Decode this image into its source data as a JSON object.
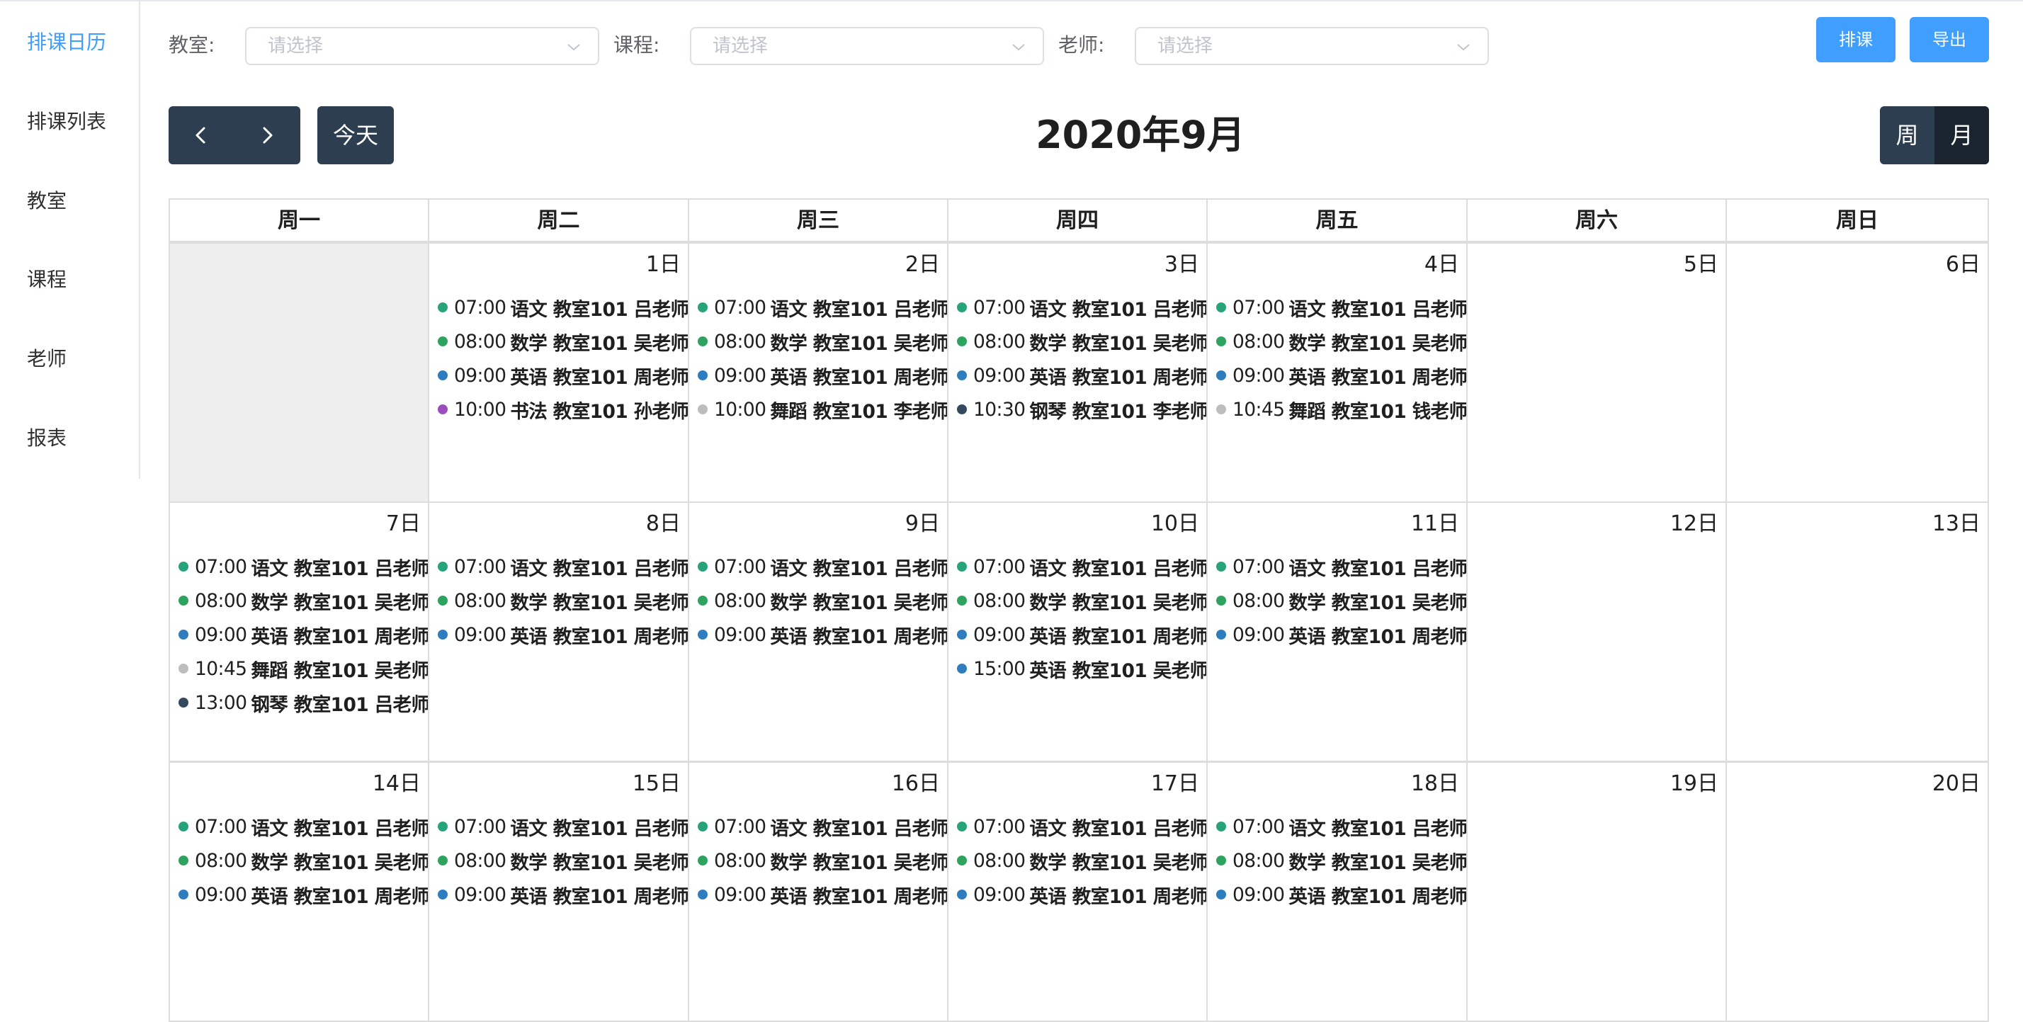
{
  "sidebar": {
    "items": [
      {
        "label": "排课日历",
        "active": true
      },
      {
        "label": "排课列表",
        "active": false
      },
      {
        "label": "教室",
        "active": false
      },
      {
        "label": "课程",
        "active": false
      },
      {
        "label": "老师",
        "active": false
      },
      {
        "label": "报表",
        "active": false
      }
    ]
  },
  "filters": {
    "classroom": {
      "label": "教室:",
      "placeholder": "请选择"
    },
    "course": {
      "label": "课程:",
      "placeholder": "请选择"
    },
    "teacher": {
      "label": "老师:",
      "placeholder": "请选择"
    }
  },
  "actions": {
    "schedule_label": "排课",
    "export_label": "导出"
  },
  "toolbar": {
    "today_label": "今天",
    "title": "2020年9月",
    "view_week": "周",
    "view_month": "月",
    "active_view": "month"
  },
  "colors": {
    "chinese": "#27a37a",
    "math": "#2ea35f",
    "english": "#2e7dbf",
    "calligraphy": "#9b4dbd",
    "dance": "#bdbdbd",
    "piano": "#34495e",
    "primary": "#409eff",
    "dark": "#2c3e50"
  },
  "calendar": {
    "weekdays": [
      "周一",
      "周二",
      "周三",
      "周四",
      "周五",
      "周六",
      "周日"
    ],
    "weeks": [
      [
        {
          "day": "",
          "events": []
        },
        {
          "day": "1日",
          "events": [
            {
              "time": "07:00",
              "detail": "语文 教室101 吕老师",
              "color": "chinese"
            },
            {
              "time": "08:00",
              "detail": "数学 教室101 吴老师",
              "color": "math"
            },
            {
              "time": "09:00",
              "detail": "英语 教室101 周老师",
              "color": "english"
            },
            {
              "time": "10:00",
              "detail": "书法 教室101 孙老师",
              "color": "calligraphy"
            }
          ]
        },
        {
          "day": "2日",
          "events": [
            {
              "time": "07:00",
              "detail": "语文 教室101 吕老师",
              "color": "chinese"
            },
            {
              "time": "08:00",
              "detail": "数学 教室101 吴老师",
              "color": "math"
            },
            {
              "time": "09:00",
              "detail": "英语 教室101 周老师",
              "color": "english"
            },
            {
              "time": "10:00",
              "detail": "舞蹈 教室101 李老师",
              "color": "dance"
            }
          ]
        },
        {
          "day": "3日",
          "events": [
            {
              "time": "07:00",
              "detail": "语文 教室101 吕老师",
              "color": "chinese"
            },
            {
              "time": "08:00",
              "detail": "数学 教室101 吴老师",
              "color": "math"
            },
            {
              "time": "09:00",
              "detail": "英语 教室101 周老师",
              "color": "english"
            },
            {
              "time": "10:30",
              "detail": "钢琴 教室101 李老师",
              "color": "piano"
            }
          ]
        },
        {
          "day": "4日",
          "events": [
            {
              "time": "07:00",
              "detail": "语文 教室101 吕老师",
              "color": "chinese"
            },
            {
              "time": "08:00",
              "detail": "数学 教室101 吴老师",
              "color": "math"
            },
            {
              "time": "09:00",
              "detail": "英语 教室101 周老师",
              "color": "english"
            },
            {
              "time": "10:45",
              "detail": "舞蹈 教室101 钱老师",
              "color": "dance"
            }
          ]
        },
        {
          "day": "5日",
          "events": []
        },
        {
          "day": "6日",
          "events": []
        }
      ],
      [
        {
          "day": "7日",
          "events": [
            {
              "time": "07:00",
              "detail": "语文 教室101 吕老师",
              "color": "chinese"
            },
            {
              "time": "08:00",
              "detail": "数学 教室101 吴老师",
              "color": "math"
            },
            {
              "time": "09:00",
              "detail": "英语 教室101 周老师",
              "color": "english"
            },
            {
              "time": "10:45",
              "detail": "舞蹈 教室101 吴老师",
              "color": "dance"
            },
            {
              "time": "13:00",
              "detail": "钢琴 教室101 吕老师",
              "color": "piano"
            }
          ]
        },
        {
          "day": "8日",
          "events": [
            {
              "time": "07:00",
              "detail": "语文 教室101 吕老师",
              "color": "chinese"
            },
            {
              "time": "08:00",
              "detail": "数学 教室101 吴老师",
              "color": "math"
            },
            {
              "time": "09:00",
              "detail": "英语 教室101 周老师",
              "color": "english"
            }
          ]
        },
        {
          "day": "9日",
          "events": [
            {
              "time": "07:00",
              "detail": "语文 教室101 吕老师",
              "color": "chinese"
            },
            {
              "time": "08:00",
              "detail": "数学 教室101 吴老师",
              "color": "math"
            },
            {
              "time": "09:00",
              "detail": "英语 教室101 周老师",
              "color": "english"
            }
          ]
        },
        {
          "day": "10日",
          "events": [
            {
              "time": "07:00",
              "detail": "语文 教室101 吕老师",
              "color": "chinese"
            },
            {
              "time": "08:00",
              "detail": "数学 教室101 吴老师",
              "color": "math"
            },
            {
              "time": "09:00",
              "detail": "英语 教室101 周老师",
              "color": "english"
            },
            {
              "time": "15:00",
              "detail": "英语 教室101 吴老师",
              "color": "english"
            }
          ]
        },
        {
          "day": "11日",
          "events": [
            {
              "time": "07:00",
              "detail": "语文 教室101 吕老师",
              "color": "chinese"
            },
            {
              "time": "08:00",
              "detail": "数学 教室101 吴老师",
              "color": "math"
            },
            {
              "time": "09:00",
              "detail": "英语 教室101 周老师",
              "color": "english"
            }
          ]
        },
        {
          "day": "12日",
          "events": []
        },
        {
          "day": "13日",
          "events": []
        }
      ],
      [
        {
          "day": "14日",
          "events": [
            {
              "time": "07:00",
              "detail": "语文 教室101 吕老师",
              "color": "chinese"
            },
            {
              "time": "08:00",
              "detail": "数学 教室101 吴老师",
              "color": "math"
            },
            {
              "time": "09:00",
              "detail": "英语 教室101 周老师",
              "color": "english"
            }
          ]
        },
        {
          "day": "15日",
          "events": [
            {
              "time": "07:00",
              "detail": "语文 教室101 吕老师",
              "color": "chinese"
            },
            {
              "time": "08:00",
              "detail": "数学 教室101 吴老师",
              "color": "math"
            },
            {
              "time": "09:00",
              "detail": "英语 教室101 周老师",
              "color": "english"
            }
          ]
        },
        {
          "day": "16日",
          "events": [
            {
              "time": "07:00",
              "detail": "语文 教室101 吕老师",
              "color": "chinese"
            },
            {
              "time": "08:00",
              "detail": "数学 教室101 吴老师",
              "color": "math"
            },
            {
              "time": "09:00",
              "detail": "英语 教室101 周老师",
              "color": "english"
            }
          ]
        },
        {
          "day": "17日",
          "events": [
            {
              "time": "07:00",
              "detail": "语文 教室101 吕老师",
              "color": "chinese"
            },
            {
              "time": "08:00",
              "detail": "数学 教室101 吴老师",
              "color": "math"
            },
            {
              "time": "09:00",
              "detail": "英语 教室101 周老师",
              "color": "english"
            }
          ]
        },
        {
          "day": "18日",
          "events": [
            {
              "time": "07:00",
              "detail": "语文 教室101 吕老师",
              "color": "chinese"
            },
            {
              "time": "08:00",
              "detail": "数学 教室101 吴老师",
              "color": "math"
            },
            {
              "time": "09:00",
              "detail": "英语 教室101 周老师",
              "color": "english"
            }
          ]
        },
        {
          "day": "19日",
          "events": []
        },
        {
          "day": "20日",
          "events": []
        }
      ]
    ]
  }
}
